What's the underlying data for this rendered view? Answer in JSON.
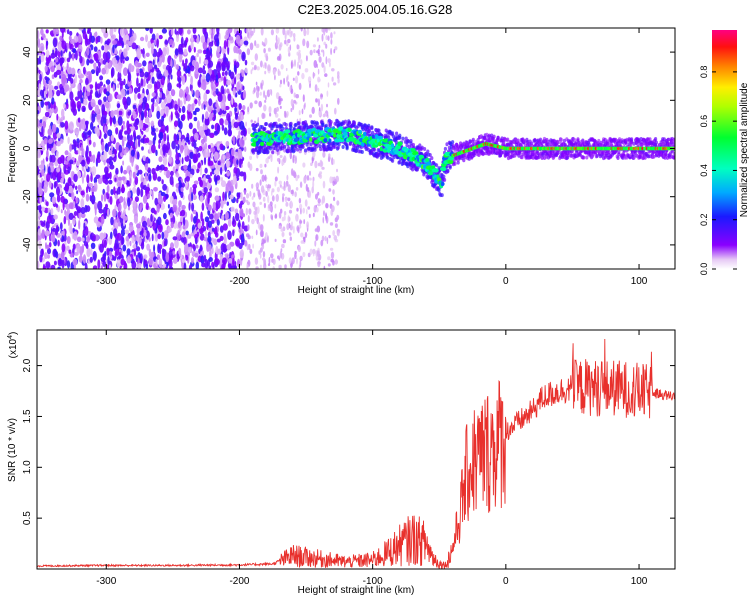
{
  "title": "C2E3.2025.004.05.16.G28",
  "chart_data": [
    {
      "type": "heatmap",
      "xlabel": "Height of straight line (km)",
      "ylabel": "Frequency (Hz)",
      "xlim": [
        -352,
        127
      ],
      "ylim": [
        -50,
        50
      ],
      "x_ticks": [
        -300,
        -200,
        -100,
        0,
        100
      ],
      "y_ticks": [
        -40,
        -20,
        0,
        20,
        40
      ],
      "colorbar": {
        "label": "Normalized spectral amplitude",
        "range": [
          0,
          0.97
        ],
        "ticks": [
          0.0,
          0.2,
          0.4,
          0.6,
          0.8
        ]
      },
      "features": {
        "noise_region_km": [
          -352,
          -195
        ],
        "faint_noise_region_km": [
          -195,
          -125
        ],
        "signal_track": [
          {
            "x": -190,
            "y": 4
          },
          {
            "x": -150,
            "y": 5
          },
          {
            "x": -120,
            "y": 6
          },
          {
            "x": -100,
            "y": 3
          },
          {
            "x": -80,
            "y": 0
          },
          {
            "x": -60,
            "y": -6
          },
          {
            "x": -48,
            "y": -14
          },
          {
            "x": -45,
            "y": -4
          },
          {
            "x": -30,
            "y": -1
          },
          {
            "x": -15,
            "y": 2
          },
          {
            "x": 0,
            "y": 0
          },
          {
            "x": 60,
            "y": 0
          },
          {
            "x": 127,
            "y": 0
          }
        ]
      }
    },
    {
      "type": "line",
      "xlabel": "Height of straight line (km)",
      "ylabel": "SNR (10 * v/v)",
      "y_exponent": "(x10",
      "y_exponent_power": "4",
      "xlim": [
        -352,
        127
      ],
      "ylim": [
        0,
        23500
      ],
      "x_ticks": [
        -300,
        -200,
        -100,
        0,
        100
      ],
      "y_ticks": [
        0.5,
        1.0,
        1.5,
        2.0
      ],
      "color": "#e8302c",
      "series": [
        {
          "x": [
            -352,
            -300,
            -250,
            -200,
            -175,
            -160,
            -140,
            -120,
            -100,
            -90,
            -80,
            -70,
            -60,
            -55,
            -50,
            -45,
            -40,
            -35,
            -30,
            -25,
            -20,
            -15,
            -10,
            -5,
            0,
            10,
            20,
            25,
            30,
            40,
            50,
            60,
            70,
            80,
            90,
            100,
            110,
            120,
            127
          ],
          "y": [
            300,
            350,
            350,
            400,
            500,
            1300,
            1000,
            700,
            900,
            1500,
            2300,
            3000,
            2500,
            1200,
            500,
            400,
            2000,
            5000,
            9000,
            10500,
            11000,
            11500,
            12000,
            12500,
            13500,
            14500,
            15500,
            16500,
            17000,
            17500,
            17800,
            17900,
            17800,
            17800,
            17700,
            17500,
            17300,
            17100,
            17000
          ]
        }
      ]
    }
  ]
}
